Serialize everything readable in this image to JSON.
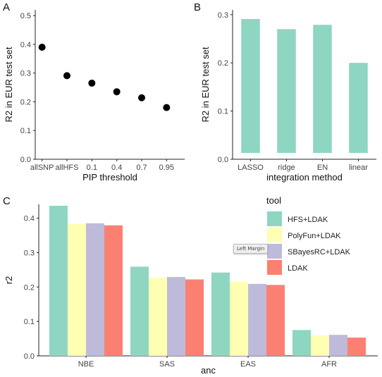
{
  "colors": {
    "dot": "#000000",
    "bar_b": "#8fd6c2",
    "hfs_ldak": "#8fd6c2",
    "polyfun_ldak": "#ffffb3",
    "sbayesrc_ldak": "#bebada",
    "ldak": "#fb8072"
  },
  "panel_labels": {
    "a": "A",
    "b": "B",
    "c": "C"
  },
  "tooltip": {
    "text": "Left Margin"
  },
  "chart_data": [
    {
      "id": "A",
      "type": "scatter",
      "categories": [
        "allSNP",
        "allHFS",
        "0.1",
        "0.4",
        "0.7",
        "0.95"
      ],
      "values": [
        0.39,
        0.291,
        0.265,
        0.235,
        0.214,
        0.18
      ],
      "xlabel": "PIP threshold",
      "ylabel": "R2 in EUR test set",
      "ylim": [
        0,
        0.52
      ],
      "yticks": [
        "0.0",
        "0.1",
        "0.2",
        "0.3",
        "0.4",
        "0.5"
      ],
      "grid": false
    },
    {
      "id": "B",
      "type": "bar",
      "categories": [
        "LASSO",
        "ridge",
        "EN",
        "linear"
      ],
      "values": [
        0.291,
        0.27,
        0.279,
        0.2
      ],
      "xlabel": "integration method",
      "ylabel": "R2 in EUR test set",
      "ylim": [
        0,
        0.31
      ],
      "yticks": [
        "0.0",
        "0.1",
        "0.2",
        "0.3"
      ],
      "grid": false
    },
    {
      "id": "C",
      "type": "bar",
      "categories": [
        "NBE",
        "SAS",
        "EAS",
        "AFR"
      ],
      "series": [
        {
          "name": "HFS+LDAK",
          "values": [
            0.436,
            0.259,
            0.242,
            0.075
          ]
        },
        {
          "name": "PolyFun+LDAK",
          "values": [
            0.383,
            0.227,
            0.215,
            0.06
          ]
        },
        {
          "name": "SBayesRC+LDAK",
          "values": [
            0.385,
            0.229,
            0.209,
            0.061
          ]
        },
        {
          "name": "LDAK",
          "values": [
            0.379,
            0.222,
            0.206,
            0.053
          ]
        }
      ],
      "xlabel": "anc",
      "ylabel": "r2",
      "ylim": [
        0,
        0.44
      ],
      "yticks": [
        "0.0",
        "0.1",
        "0.2",
        "0.3",
        "0.4"
      ],
      "legend_title": "tool",
      "legend_position": "right",
      "grid": false
    }
  ]
}
